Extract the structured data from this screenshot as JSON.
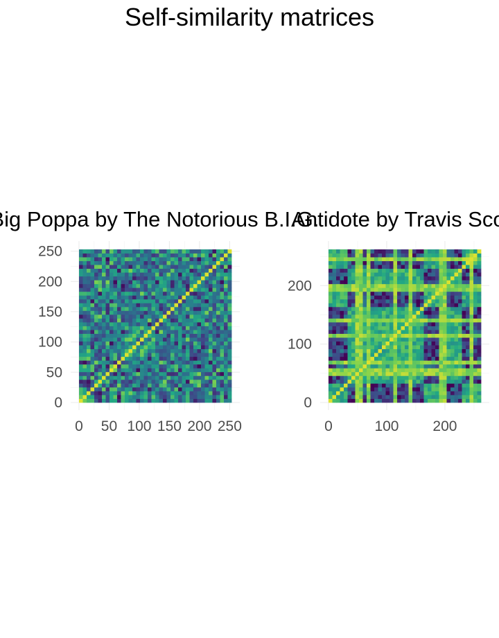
{
  "figure": {
    "title": "Self-similarity matrices"
  },
  "colors": {
    "palette": [
      "#440154",
      "#414487",
      "#2a788e",
      "#22a884",
      "#7ad151",
      "#fde725"
    ]
  },
  "chart_data": [
    {
      "type": "heatmap",
      "title": "Big Poppa by The Notorious B.I.G.",
      "xlabel": "",
      "ylabel": "",
      "xlim": [
        0,
        253
      ],
      "ylim": [
        0,
        253
      ],
      "x_ticks": [
        0,
        50,
        100,
        150,
        200,
        250
      ],
      "y_ticks": [
        0,
        50,
        100,
        150,
        200,
        250
      ],
      "matrix_size": 253,
      "colorscale": "viridis",
      "dominant_value": "mid (teal-green), dense fine-grained structure"
    },
    {
      "type": "heatmap",
      "title": "Antidote by Travis Scott",
      "xlabel": "",
      "ylabel": "",
      "xlim": [
        0,
        262
      ],
      "ylim": [
        0,
        262
      ],
      "x_ticks": [
        0,
        100,
        200
      ],
      "y_ticks": [
        0,
        100,
        200
      ],
      "matrix_size": 262,
      "colorscale": "viridis",
      "dominant_value": "mid (green), block structure of repeated sections"
    }
  ]
}
